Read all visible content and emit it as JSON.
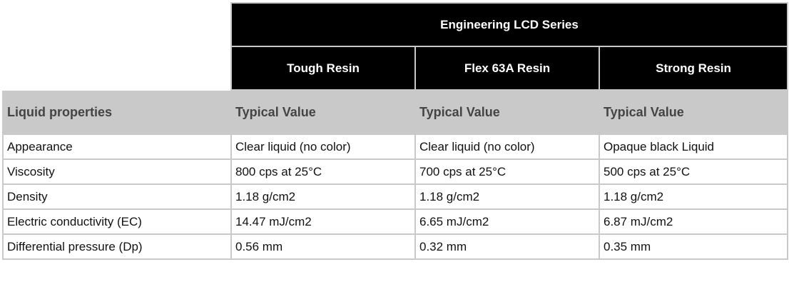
{
  "table": {
    "series_header": "Engineering LCD Series",
    "resins": [
      "Tough Resin",
      "Flex 63A Resin",
      "Strong Resin"
    ],
    "property_header": "Liquid properties",
    "value_headers": [
      "Typical Value",
      "Typical Value",
      "Typical Value"
    ],
    "rows": [
      {
        "property": "Appearance",
        "values": [
          "Clear liquid (no color)",
          "Clear liquid (no color)",
          "Opaque black Liquid"
        ]
      },
      {
        "property": "Viscosity",
        "values": [
          "800 cps at 25°C",
          "700 cps at 25°C",
          "500 cps at 25°C"
        ]
      },
      {
        "property": "Density",
        "values": [
          "1.18 g/cm2",
          "1.18 g/cm2",
          "1.18 g/cm2"
        ]
      },
      {
        "property": "Electric conductivity (EC)",
        "values": [
          "14.47 mJ/cm2",
          "6.65 mJ/cm2",
          "6.87 mJ/cm2"
        ]
      },
      {
        "property": "Differential pressure (Dp)",
        "values": [
          "0.56 mm",
          "0.32 mm",
          "0.35 mm"
        ]
      }
    ]
  }
}
